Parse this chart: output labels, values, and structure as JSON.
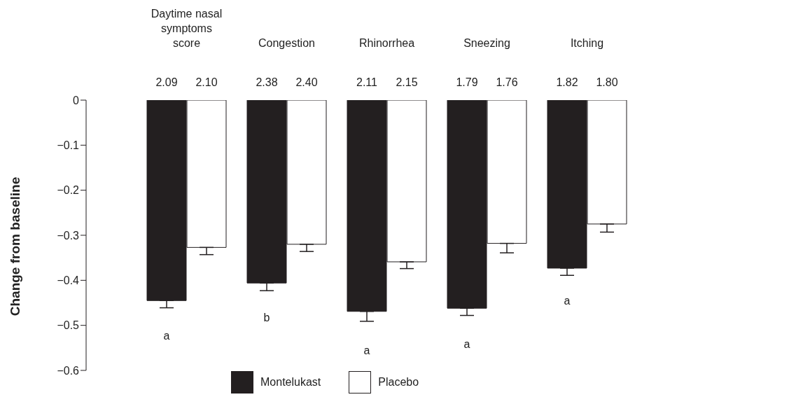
{
  "chart_data": {
    "type": "bar",
    "ylabel": "Change from baseline",
    "categories": [
      "Daytime nasal symptoms score",
      "Congestion",
      "Rhinorrhea",
      "Sneezing",
      "Itching"
    ],
    "series": [
      {
        "name": "Montelukast",
        "color": "#231f20",
        "values": [
          -0.445,
          -0.406,
          -0.469,
          -0.462,
          -0.373
        ],
        "errors": [
          [
            -0.461,
            -0.445
          ],
          [
            -0.423,
            -0.406
          ],
          [
            -0.491,
            -0.469
          ],
          [
            -0.478,
            -0.462
          ],
          [
            -0.389,
            -0.373
          ]
        ]
      },
      {
        "name": "Placebo",
        "color": "#ffffff",
        "values": [
          -0.327,
          -0.32,
          -0.359,
          -0.318,
          -0.275
        ],
        "errors": [
          [
            -0.343,
            -0.327
          ],
          [
            -0.336,
            -0.32
          ],
          [
            -0.374,
            -0.359
          ],
          [
            -0.339,
            -0.318
          ],
          [
            -0.293,
            -0.275
          ]
        ]
      }
    ],
    "ylim": [
      -0.6,
      0
    ],
    "yticks": [
      0,
      -0.1,
      -0.2,
      -0.3,
      -0.4,
      -0.5,
      -0.6
    ],
    "grid": false,
    "legend": "bottom",
    "annotations": [
      "2.09",
      "2.10",
      "2.38",
      "2.40",
      "2.11",
      "2.15",
      "1.79",
      "1.76",
      "1.82",
      "1.80",
      "a",
      "b",
      "a",
      "a",
      "a"
    ]
  }
}
